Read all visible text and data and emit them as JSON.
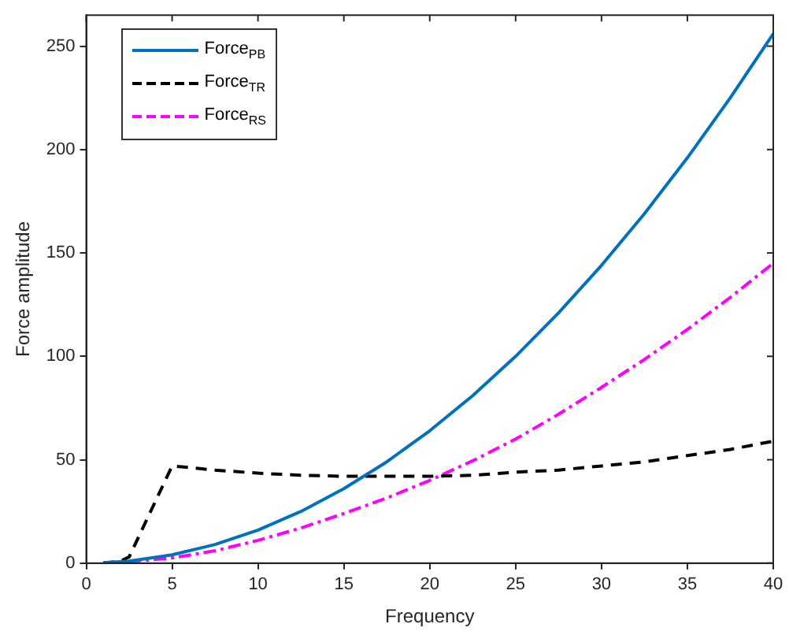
{
  "chart_data": {
    "type": "line",
    "xlabel": "Frequency",
    "ylabel": "Force amplitude",
    "xlim": [
      0,
      40
    ],
    "ylim": [
      0,
      265
    ],
    "xticks": [
      0,
      5,
      10,
      15,
      20,
      25,
      30,
      35,
      40
    ],
    "yticks": [
      0,
      50,
      100,
      150,
      200,
      250
    ],
    "grid": false,
    "legend": "top left",
    "marker": "none",
    "series": [
      {
        "name": "Force$_{PB}$",
        "color": "#0072bd",
        "line_style": "solid",
        "x": [
          1,
          2.5,
          5,
          7.5,
          10,
          12.5,
          15,
          17.5,
          20,
          22.5,
          25,
          27.5,
          30,
          32.5,
          35,
          37.5,
          40
        ],
        "values": [
          0.2,
          1,
          4,
          9,
          16,
          25,
          36,
          49,
          64,
          81,
          100,
          121,
          144,
          169,
          196,
          225,
          256
        ]
      },
      {
        "name": "Force$_{TR}$",
        "color": "#000000",
        "line_style": "dashed",
        "x": [
          1,
          2,
          2.5,
          5,
          7.5,
          10,
          12.5,
          15,
          17.5,
          20,
          22.5,
          25,
          27.5,
          30,
          32.5,
          35,
          37.5,
          40
        ],
        "values": [
          0,
          1,
          3,
          47,
          45,
          43.5,
          42.5,
          42,
          42,
          42,
          42.5,
          44,
          45,
          47,
          49,
          52,
          55,
          59
        ]
      },
      {
        "name": "Force$_{RS}$",
        "color": "#ff00ff",
        "line_style": "dashdot",
        "x": [
          1,
          2.5,
          5,
          7.5,
          10,
          12.5,
          15,
          17.5,
          20,
          22.5,
          25,
          27.5,
          30,
          32.5,
          35,
          37.5,
          40
        ],
        "values": [
          0.1,
          0.8,
          2.5,
          6,
          11,
          17,
          24,
          31.5,
          40,
          49.5,
          60,
          72,
          85,
          98.5,
          113,
          128.5,
          145
        ]
      }
    ]
  }
}
